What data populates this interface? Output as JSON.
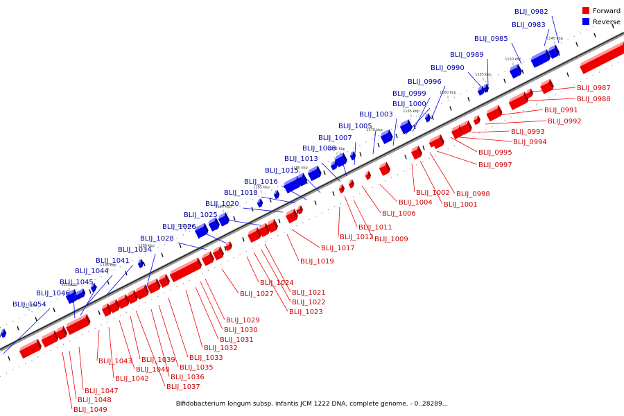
{
  "legend": [
    {
      "label": "Forward",
      "color": "#ee0000"
    },
    {
      "label": "Reverse",
      "color": "#0000ee"
    }
  ],
  "caption": "Bifidobacterium longum subsp. infantis JCM 1222 DNA, complete genome. - 0..28289...",
  "ticks": [
    "1145 kbp",
    "1150 kbp",
    "1155 kbp",
    "1160 kbp",
    "1165 kbp",
    "1170 kbp",
    "1175 kbp",
    "1180 kbp",
    "1185 kbp",
    "1190 kbp",
    "1195 kbp",
    "1200 kbp",
    "1205 kbp",
    "1210 kbp",
    "1215 kbp"
  ],
  "reverse_labels": [
    "BLIJ_0982",
    "BLIJ_0983",
    "BLIJ_0985",
    "BLIJ_0989",
    "BLIJ_0990",
    "BLIJ_0996",
    "BLIJ_0999",
    "BLIJ_1000",
    "BLIJ_1003",
    "BLIJ_1005",
    "BLIJ_1007",
    "BLIJ_1008",
    "BLIJ_1013",
    "BLIJ_1015",
    "BLIJ_1016",
    "BLIJ_1018",
    "BLIJ_1020",
    "BLIJ_1025",
    "BLIJ_1026",
    "BLIJ_1028",
    "BLIJ_1034",
    "BLIJ_1041",
    "BLIJ_1044",
    "BLIJ_1045",
    "BLIJ_1046",
    "BLIJ_1054"
  ],
  "forward_labels": [
    "BLIJ_0987",
    "BLIJ_0988",
    "BLIJ_0991",
    "BLIJ_0992",
    "BLIJ_0993",
    "BLIJ_0994",
    "BLIJ_0995",
    "BLIJ_0997",
    "BLIJ_0998",
    "BLIJ_1001",
    "BLIJ_1002",
    "BLIJ_1004",
    "BLIJ_1006",
    "BLIJ_1009",
    "BLIJ_1011",
    "BLIJ_1012",
    "BLIJ_1017",
    "BLIJ_1019",
    "BLIJ_1021",
    "BLIJ_1022",
    "BLIJ_1023",
    "BLIJ_1024",
    "BLIJ_1027",
    "BLIJ_1029",
    "BLIJ_1030",
    "BLIJ_1031",
    "BLIJ_1032",
    "BLIJ_1033",
    "BLIJ_1035",
    "BLIJ_1036",
    "BLIJ_1037",
    "BLIJ_1039",
    "BLIJ_1040",
    "BLIJ_1042",
    "BLIJ_1043",
    "BLIJ_1047",
    "BLIJ_1048",
    "BLIJ_1049"
  ]
}
